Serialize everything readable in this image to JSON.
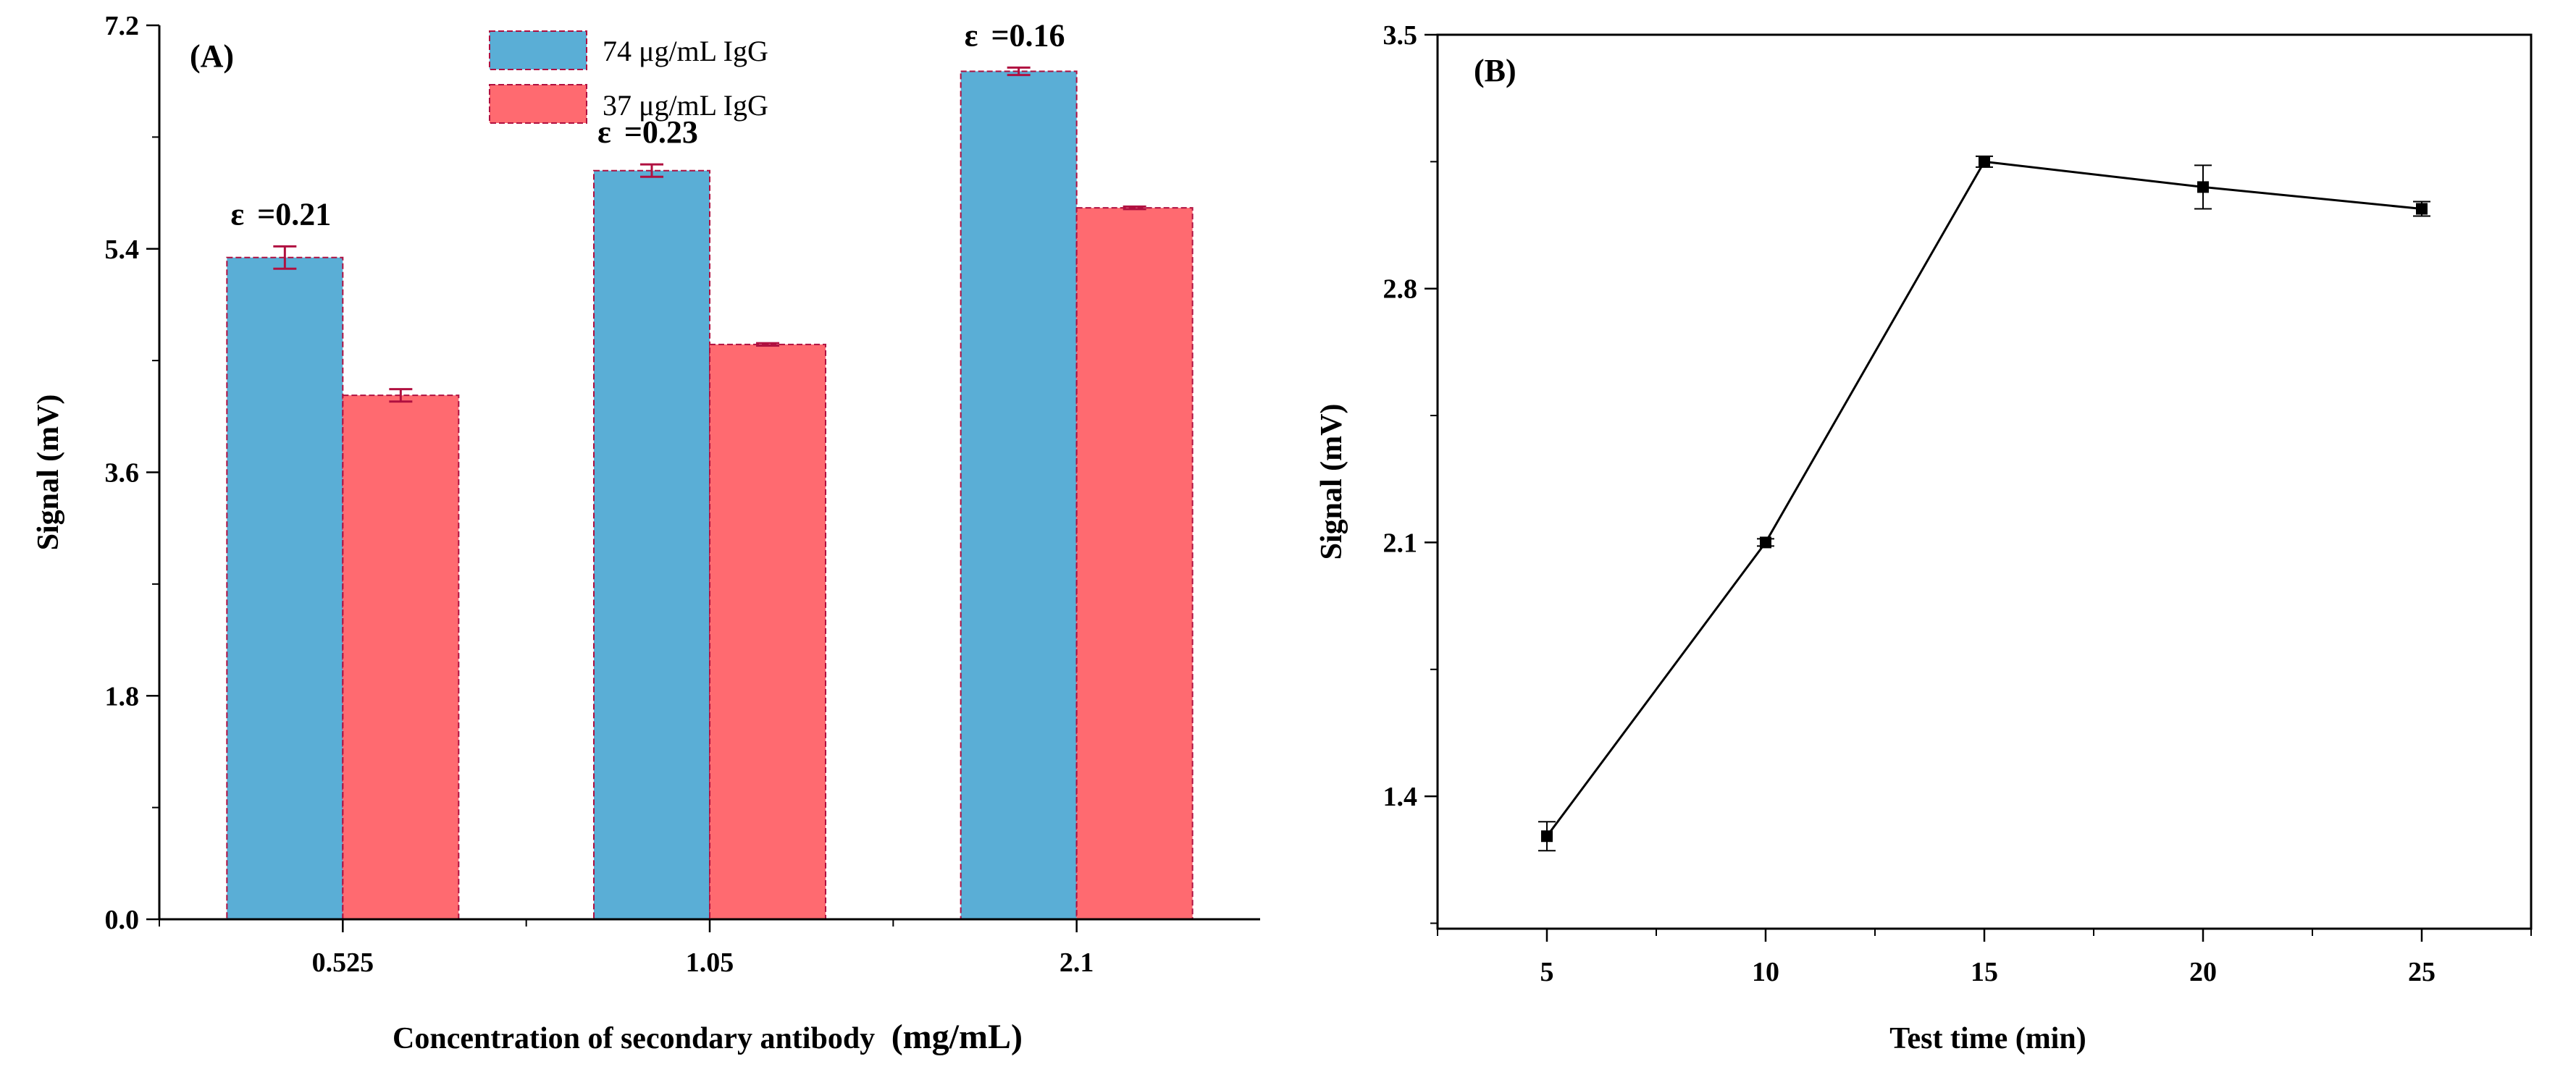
{
  "chart_data": [
    {
      "panel": "(A)",
      "type": "bar",
      "xlabel": "Concentration of secondary antibody",
      "xlabel_unit": "(mg/mL)",
      "ylabel": "Signal (mV)",
      "ylim": [
        0,
        7.2
      ],
      "yticks": [
        "0.0",
        "1.8",
        "3.6",
        "5.4",
        "7.2"
      ],
      "categories": [
        "0.525",
        "1.05",
        "2.1"
      ],
      "series": [
        {
          "name": "74 μg/mL IgG",
          "color": "#5aaed6",
          "values": [
            5.33,
            6.03,
            6.83
          ],
          "errors": [
            0.09,
            0.05,
            0.03
          ]
        },
        {
          "name": "37 μg/mL IgG",
          "color": "#ff6a70",
          "values": [
            4.22,
            4.63,
            5.73
          ],
          "errors": [
            0.05,
            0.01,
            0.01
          ]
        }
      ],
      "annotations": [
        {
          "symbol": "ε",
          "text": "=0.21"
        },
        {
          "symbol": "ε",
          "text": "=0.23"
        },
        {
          "symbol": "ε",
          "text": "=0.16"
        }
      ],
      "legend_position": "top-center",
      "edge_color": "#b01040"
    },
    {
      "panel": "(B)",
      "type": "line",
      "xlabel": "Test time (min)",
      "ylabel": "Signal (mV)",
      "xlim": [
        2.5,
        27.5
      ],
      "ylim": [
        1.035,
        3.5
      ],
      "xticks": [
        "5",
        "10",
        "15",
        "20",
        "25"
      ],
      "yticks": [
        "1.4",
        "2.1",
        "2.8",
        "3.5"
      ],
      "x": [
        5,
        10,
        15,
        20,
        25
      ],
      "y": [
        1.29,
        2.1,
        3.15,
        3.08,
        3.02
      ],
      "errors": [
        0.04,
        0.01,
        0.015,
        0.06,
        0.02
      ],
      "line_color": "#000000"
    }
  ]
}
